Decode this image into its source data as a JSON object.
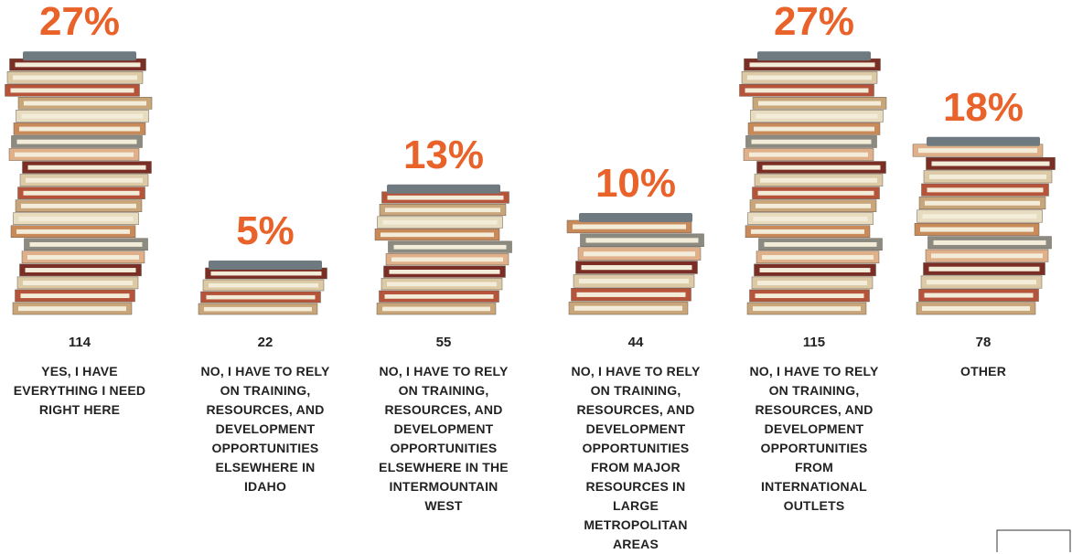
{
  "chart_data": {
    "type": "pictograph",
    "categories": [
      "YES, I HAVE EVERYTHING I NEED RIGHT HERE",
      "NO, I HAVE TO RELY ON TRAINING, RESOURCES, AND DEVELOPMENT OPPORTUNITIES ELSEWHERE IN IDAHO",
      "NO, I HAVE TO RELY ON TRAINING, RESOURCES, AND DEVELOPMENT OPPORTUNITIES ELSEWHERE IN THE INTERMOUNTAIN WEST",
      "NO, I HAVE TO RELY ON TRAINING, RESOURCES, AND DEVELOPMENT OPPORTUNITIES FROM MAJOR RESOURCES IN LARGE METROPOLITAN AREAS",
      "NO, I HAVE TO RELY ON TRAINING, RESOURCES, AND DEVELOPMENT OPPORTUNITIES FROM INTERNATIONAL OUTLETS",
      "OTHER"
    ],
    "values": [
      27,
      5,
      13,
      10,
      27,
      18
    ],
    "value_labels": [
      "27%",
      "5%",
      "13%",
      "10%",
      "27%",
      "18%"
    ],
    "counts": [
      114,
      22,
      55,
      44,
      115,
      78
    ],
    "color": "#e8622a"
  }
}
